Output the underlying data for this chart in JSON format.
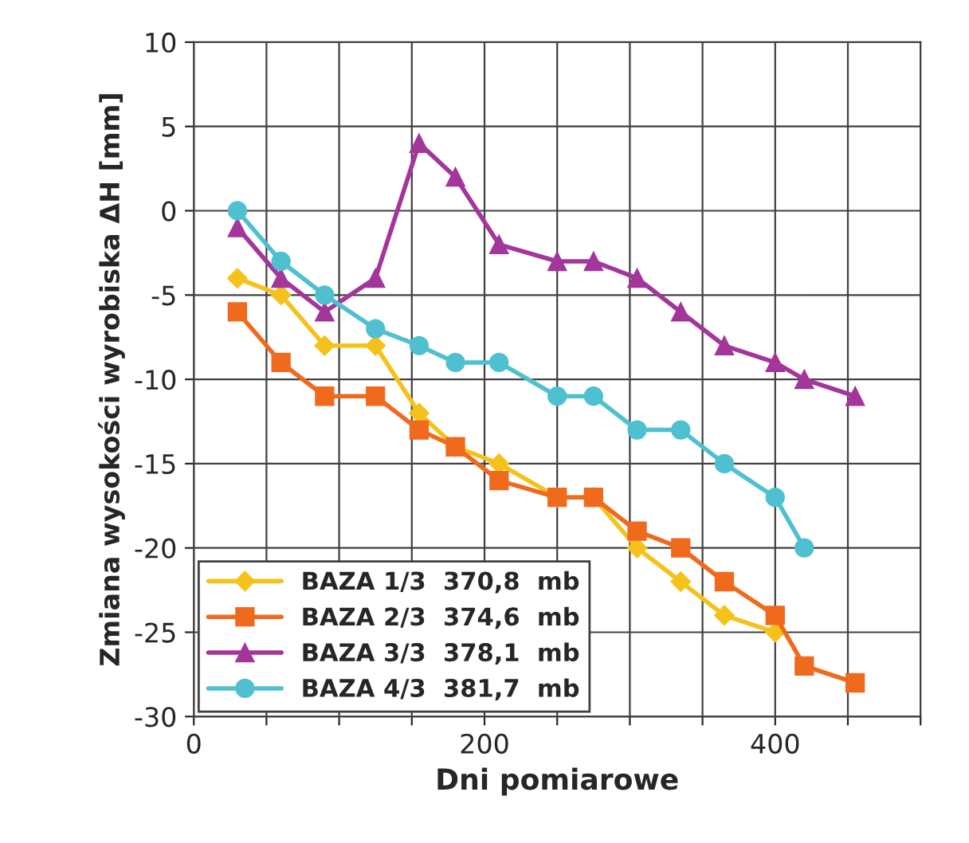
{
  "chart_data": {
    "type": "line",
    "xlabel": "Dni pomiarowe",
    "ylabel": "Zmiana wysokości wyrobiska ΔH [mm]",
    "x": [
      30,
      60,
      90,
      125,
      155,
      180,
      210,
      250,
      275,
      305,
      335,
      365,
      400,
      420,
      455
    ],
    "series": [
      {
        "name": "BAZA 1/3  370,8  mb",
        "color": "#f5c21b",
        "marker": "diamond",
        "values": [
          -4,
          -5,
          -8,
          -8,
          -12,
          -14,
          -15,
          -17,
          -17,
          -20,
          -22,
          -24,
          -25,
          null,
          null
        ]
      },
      {
        "name": "BAZA 2/3  374,6  mb",
        "color": "#f06a1e",
        "marker": "square",
        "values": [
          -6,
          -9,
          -11,
          -11,
          -13,
          -14,
          -16,
          -17,
          -17,
          -19,
          -20,
          -22,
          -24,
          -27,
          -28
        ]
      },
      {
        "name": "BAZA 3/3  378,1  mb",
        "color": "#a3359b",
        "marker": "triangle",
        "values": [
          -1,
          -4,
          -6,
          -4,
          4,
          2,
          -2,
          -3,
          -3,
          -4,
          -6,
          -8,
          -9,
          -10,
          -11
        ]
      },
      {
        "name": "BAZA 4/3  381,7  mb",
        "color": "#4fc0d0",
        "marker": "circle",
        "values": [
          0,
          -3,
          -5,
          -7,
          -8,
          -9,
          -9,
          -11,
          -11,
          -13,
          -13,
          -15,
          -17,
          -20,
          null
        ]
      }
    ],
    "xlim": [
      0,
      500
    ],
    "xticks": [
      0,
      {
        "value": 50,
        "label": null
      },
      {
        "value": 100,
        "label": null
      },
      {
        "value": 150,
        "label": null
      },
      200,
      {
        "value": 250,
        "label": null
      },
      {
        "value": 300,
        "label": null
      },
      {
        "value": 350,
        "label": null
      },
      400,
      {
        "value": 450,
        "label": null
      },
      {
        "value": 500,
        "label": null
      }
    ],
    "ylim": [
      -30,
      10
    ],
    "yticks": [
      -30,
      -25,
      -20,
      -15,
      -10,
      -5,
      0,
      5,
      10
    ],
    "grid": true,
    "legend": "bottom left",
    "line_style": "solid"
  }
}
